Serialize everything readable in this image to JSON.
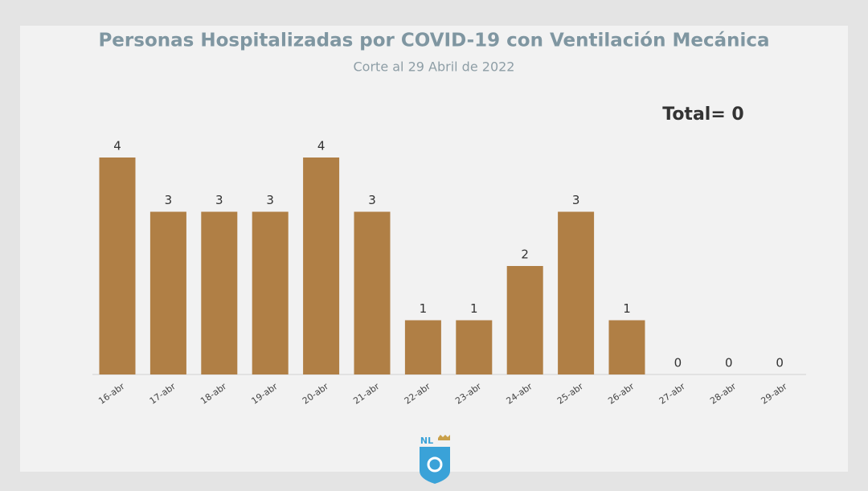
{
  "chart_data": {
    "type": "bar",
    "title": "Personas Hospitalizadas por COVID-19 con Ventilación Mecánica",
    "subtitle": "Corte al 29 Abril de 2022",
    "annotation": "Total= 0",
    "categories": [
      "16-abr",
      "17-abr",
      "18-abr",
      "19-abr",
      "20-abr",
      "21-abr",
      "22-abr",
      "23-abr",
      "24-abr",
      "25-abr",
      "26-abr",
      "27-abr",
      "28-abr",
      "29-abr"
    ],
    "values": [
      4,
      3,
      3,
      3,
      4,
      3,
      1,
      1,
      2,
      3,
      1,
      0,
      0,
      0
    ],
    "color": "#b07f45",
    "logo_text": "NL"
  }
}
